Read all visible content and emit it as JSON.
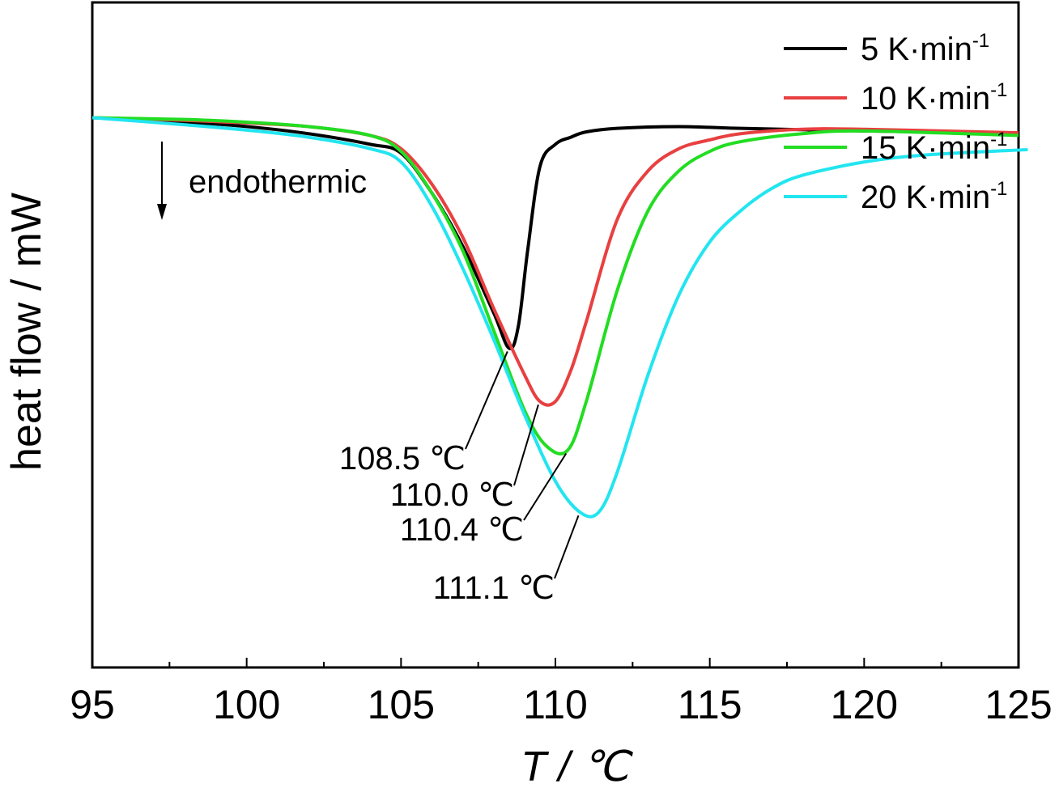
{
  "chart_data": {
    "type": "line",
    "xlabel": "T / ℃",
    "ylabel": "heat flow / mW",
    "xlim": [
      95,
      125
    ],
    "ylim": [
      -6.2,
      1.3
    ],
    "grid": false,
    "legend_position": "top-right",
    "x_ticks": [
      "95",
      "100",
      "105",
      "110",
      "115",
      "120",
      "125"
    ],
    "series": [
      {
        "name": "5 K·min",
        "superscript": "-1",
        "color": "#000000",
        "x": [
          95,
          98,
          100,
          102,
          104,
          105,
          106,
          107,
          108,
          108.5,
          108.8,
          109.1,
          109.5,
          110,
          110.5,
          111,
          112,
          114,
          116,
          120,
          125
        ],
        "y": [
          0,
          -0.05,
          -0.1,
          -0.18,
          -0.3,
          -0.4,
          -0.85,
          -1.45,
          -2.2,
          -2.6,
          -2.35,
          -1.5,
          -0.55,
          -0.3,
          -0.22,
          -0.16,
          -0.12,
          -0.1,
          -0.12,
          -0.15,
          -0.17
        ]
      },
      {
        "name": "10 K·min",
        "superscript": "-1",
        "color": "#e84040",
        "x": [
          95,
          98,
          100,
          102,
          104,
          105,
          106,
          107,
          108,
          109,
          109.5,
          110,
          110.5,
          111,
          112,
          113,
          114,
          115,
          116,
          118,
          120,
          125
        ],
        "y": [
          0,
          -0.03,
          -0.06,
          -0.1,
          -0.2,
          -0.35,
          -0.75,
          -1.35,
          -2.15,
          -2.9,
          -3.2,
          -3.2,
          -2.85,
          -2.3,
          -1.15,
          -0.6,
          -0.35,
          -0.25,
          -0.18,
          -0.13,
          -0.13,
          -0.17
        ]
      },
      {
        "name": "15 K·min",
        "superscript": "-1",
        "color": "#22dd22",
        "x": [
          95,
          98,
          100,
          102,
          104,
          105,
          106,
          107,
          108,
          109,
          109.7,
          110.4,
          111,
          112,
          113,
          114,
          115,
          116,
          118,
          120,
          125
        ],
        "y": [
          0,
          -0.02,
          -0.05,
          -0.1,
          -0.2,
          -0.38,
          -0.85,
          -1.5,
          -2.4,
          -3.3,
          -3.7,
          -3.75,
          -3.2,
          -1.95,
          -1.05,
          -0.6,
          -0.38,
          -0.27,
          -0.18,
          -0.15,
          -0.2
        ]
      },
      {
        "name": "20 K·min",
        "superscript": "-1",
        "color": "#22e5f0",
        "x": [
          95,
          98,
          100,
          102,
          104,
          105,
          106,
          107,
          108,
          109,
          110,
          110.8,
          111.4,
          112,
          113,
          114,
          115,
          116,
          117,
          118,
          120,
          122,
          125.3
        ],
        "y": [
          0,
          -0.08,
          -0.14,
          -0.22,
          -0.35,
          -0.5,
          -1.0,
          -1.7,
          -2.5,
          -3.35,
          -4.1,
          -4.45,
          -4.45,
          -4.0,
          -2.9,
          -2.0,
          -1.4,
          -1.05,
          -0.8,
          -0.65,
          -0.5,
          -0.42,
          -0.36
        ]
      }
    ],
    "annotations": [
      {
        "text": "108.5 ℃",
        "x": 108.5
      },
      {
        "text": "110.0 ℃",
        "x": 110.0
      },
      {
        "text": "110.4 ℃",
        "x": 110.4
      },
      {
        "text": "111.1 ℃",
        "x": 111.1
      }
    ],
    "note": {
      "text": "endothermic",
      "arrow": "down"
    }
  }
}
